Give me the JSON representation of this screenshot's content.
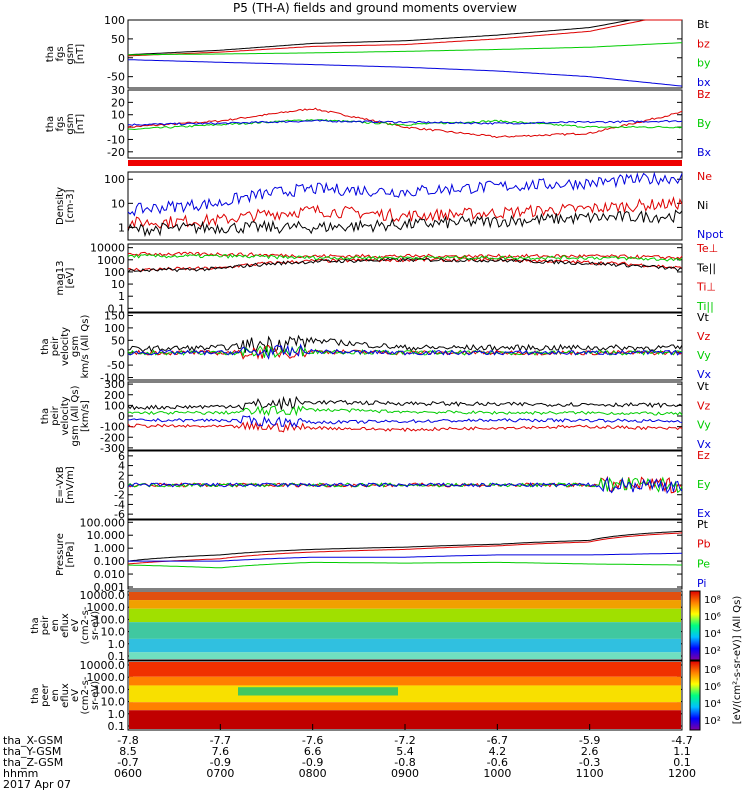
{
  "title": "P5 (TH-A) fields and ground moments overview",
  "colors": {
    "black": "#000000",
    "red": "#dd0000",
    "green": "#00cc00",
    "blue": "#0000dd"
  },
  "panels": [
    {
      "id": "p1",
      "ylabel": [
        "tha",
        "fgs",
        "gsm",
        "[nT]"
      ],
      "ticks": [
        "100",
        "50",
        "0",
        "-50"
      ],
      "ylim": [
        -80,
        100
      ],
      "legend": [
        {
          "text": "Bt",
          "color": "#000000"
        },
        {
          "text": "bz",
          "color": "#dd0000"
        },
        {
          "text": "by",
          "color": "#00cc00"
        },
        {
          "text": "bx",
          "color": "#0000dd"
        }
      ]
    },
    {
      "id": "p2",
      "ylabel": [
        "tha",
        "fgs",
        "gsm",
        "[nT]"
      ],
      "ticks": [
        "30",
        "20",
        "10",
        "0",
        "-10",
        "-20"
      ],
      "ylim": [
        -25,
        30
      ],
      "legend": [
        {
          "text": "Bz",
          "color": "#dd0000"
        },
        {
          "text": "By",
          "color": "#00cc00"
        },
        {
          "text": "Bx",
          "color": "#0000dd"
        }
      ]
    },
    {
      "id": "p3",
      "ylabel": [
        "Density",
        "[cm-3]"
      ],
      "ticks": [
        "100",
        "10",
        "1"
      ],
      "ylim": [
        0.3,
        200
      ],
      "scale": "log",
      "legend": [
        {
          "text": "Ne",
          "color": "#dd0000"
        },
        {
          "text": "Ni",
          "color": "#000000"
        },
        {
          "text": "Npot",
          "color": "#0000dd"
        }
      ]
    },
    {
      "id": "p4",
      "ylabel": [
        "mag13",
        "[eV]"
      ],
      "ticks": [
        "10000",
        "1000",
        "100",
        "10",
        "1",
        "0.1"
      ],
      "ylim": [
        0.05,
        20000
      ],
      "scale": "log",
      "legend": [
        {
          "text": "Te⊥",
          "color": "#dd0000"
        },
        {
          "text": "Te||",
          "color": "#000000"
        },
        {
          "text": "Ti⊥",
          "color": "#dd0000"
        },
        {
          "text": "Ti||",
          "color": "#00cc00"
        }
      ]
    },
    {
      "id": "p5",
      "ylabel": [
        "tha",
        "peir",
        "velocity",
        "gsm",
        "km/s (All Qs)"
      ],
      "ticks": [
        "150",
        "100",
        "50",
        "0",
        "-50",
        "-100"
      ],
      "ylim": [
        -110,
        160
      ],
      "legend": [
        {
          "text": "Vt",
          "color": "#000000"
        },
        {
          "text": "Vz",
          "color": "#dd0000"
        },
        {
          "text": "Vy",
          "color": "#00cc00"
        },
        {
          "text": "Vx",
          "color": "#0000dd"
        }
      ]
    },
    {
      "id": "p6",
      "ylabel": [
        "tha",
        "peir",
        "velocity",
        "gsm (All Qs)",
        "[km/s]"
      ],
      "ticks": [
        "300",
        "200",
        "100",
        "0",
        "-100",
        "-200",
        "-300"
      ],
      "ylim": [
        -320,
        320
      ],
      "legend": [
        {
          "text": "Vt",
          "color": "#000000"
        },
        {
          "text": "Vz",
          "color": "#dd0000"
        },
        {
          "text": "Vy",
          "color": "#00cc00"
        },
        {
          "text": "Vx",
          "color": "#0000dd"
        }
      ]
    },
    {
      "id": "p7",
      "ylabel": [
        "E=-VxB",
        "[mV/m]"
      ],
      "ticks": [
        "6",
        "4",
        "2",
        "0",
        "-2",
        "-4",
        "-6"
      ],
      "ylim": [
        -7,
        7
      ],
      "legend": [
        {
          "text": "Ez",
          "color": "#dd0000"
        },
        {
          "text": "Ey",
          "color": "#00cc00"
        },
        {
          "text": "Ex",
          "color": "#0000dd"
        }
      ]
    },
    {
      "id": "p8",
      "ylabel": [
        "Pressure",
        "[nPa]"
      ],
      "ticks": [
        "100.000",
        "10.000",
        "1.000",
        "0.100",
        "0.010",
        "0.001"
      ],
      "ylim": [
        0.0007,
        150
      ],
      "scale": "log",
      "legend": [
        {
          "text": "Pt",
          "color": "#000000"
        },
        {
          "text": "Pb",
          "color": "#dd0000"
        },
        {
          "text": "Pe",
          "color": "#00cc00"
        },
        {
          "text": "Pi",
          "color": "#0000dd"
        }
      ]
    },
    {
      "id": "p9",
      "ylabel": [
        "tha",
        "peir",
        "en",
        "eflux",
        "eV",
        "(cm2-s-",
        "sr-eV)"
      ],
      "ticks": [
        "10000.0",
        "1000.0",
        "100.0",
        "10.0",
        "1.0",
        "0.1"
      ],
      "type": "spectrogram"
    },
    {
      "id": "p10",
      "ylabel": [
        "tha",
        "peer",
        "en",
        "eflux",
        "eV",
        "(cm2-s-",
        "sr-eV)"
      ],
      "ticks": [
        "10000.0",
        "1000.0",
        "100.0",
        "10.0",
        "1.0",
        "0.1"
      ],
      "type": "spectrogram"
    }
  ],
  "colorbar": {
    "ticks": [
      "10⁸",
      "10⁶",
      "10⁴",
      "10²"
    ],
    "label": "[eV/(cm²-s-sr-eV)] (All Qs)"
  },
  "xaxis": {
    "rows": [
      {
        "label": "tha_X-GSM",
        "values": [
          "-7.8",
          "-7.7",
          "-7.6",
          "-7.2",
          "-6.7",
          "-5.9",
          "-4.7"
        ]
      },
      {
        "label": "tha_Y-GSM",
        "values": [
          "8.5",
          "7.6",
          "6.6",
          "5.4",
          "4.2",
          "2.6",
          "1.1"
        ]
      },
      {
        "label": "tha_Z-GSM",
        "values": [
          "-0.7",
          "-0.9",
          "-0.9",
          "-0.8",
          "-0.6",
          "-0.3",
          "0.1"
        ]
      },
      {
        "label": "hhmm",
        "values": [
          "0600",
          "0700",
          "0800",
          "0900",
          "1000",
          "1100",
          "1200"
        ]
      }
    ],
    "date": "2017 Apr 07"
  },
  "chart_data": {
    "type": "line",
    "title": "P5 (TH-A) fields and ground moments overview",
    "x": [
      "0600",
      "0700",
      "0800",
      "0900",
      "1000",
      "1100",
      "1200"
    ],
    "series": [
      {
        "name": "Bt",
        "panel": "p1",
        "values": [
          8,
          20,
          38,
          45,
          60,
          80,
          125
        ]
      },
      {
        "name": "bz",
        "panel": "p1",
        "values": [
          5,
          15,
          30,
          35,
          50,
          70,
          120
        ]
      },
      {
        "name": "by",
        "panel": "p1",
        "values": [
          8,
          10,
          13,
          17,
          22,
          28,
          40
        ]
      },
      {
        "name": "bx",
        "panel": "p1",
        "values": [
          -5,
          -12,
          -18,
          -25,
          -35,
          -50,
          -75
        ]
      },
      {
        "name": "Bz",
        "panel": "p2",
        "values": [
          0,
          5,
          15,
          0,
          -8,
          -5,
          12
        ]
      },
      {
        "name": "By",
        "panel": "p2",
        "values": [
          -2,
          2,
          6,
          2,
          5,
          0,
          0
        ]
      },
      {
        "name": "Bx",
        "panel": "p2",
        "values": [
          2,
          3,
          5,
          4,
          3,
          4,
          5
        ]
      },
      {
        "name": "Ne",
        "panel": "p3",
        "values": [
          1.5,
          2,
          5,
          3,
          4,
          6,
          10
        ]
      },
      {
        "name": "Ni",
        "panel": "p3",
        "values": [
          0.8,
          1,
          1,
          1.3,
          1.8,
          2.5,
          3
        ]
      },
      {
        "name": "Npot",
        "panel": "p3",
        "values": [
          5,
          10,
          40,
          30,
          50,
          70,
          120
        ]
      },
      {
        "name": "Te⊥",
        "panel": "p4",
        "values": [
          150,
          200,
          800,
          1000,
          1000,
          600,
          200
        ]
      },
      {
        "name": "Te||",
        "panel": "p4",
        "values": [
          120,
          180,
          700,
          1000,
          900,
          500,
          150
        ]
      },
      {
        "name": "Ti⊥",
        "panel": "p4",
        "values": [
          3000,
          3000,
          2000,
          2000,
          2000,
          2000,
          1500
        ]
      },
      {
        "name": "Ti||",
        "panel": "p4",
        "values": [
          2000,
          2000,
          1500,
          1500,
          1500,
          1500,
          1000
        ]
      },
      {
        "name": "Vt",
        "panel": "p5",
        "values": [
          15,
          20,
          50,
          20,
          20,
          20,
          20
        ]
      },
      {
        "name": "Vz",
        "panel": "p5",
        "values": [
          0,
          0,
          5,
          0,
          0,
          0,
          0
        ]
      },
      {
        "name": "Vy",
        "panel": "p5",
        "values": [
          0,
          0,
          5,
          0,
          0,
          0,
          0
        ]
      },
      {
        "name": "Vx",
        "panel": "p5",
        "values": [
          0,
          0,
          5,
          0,
          0,
          0,
          0
        ]
      },
      {
        "name": "Vt",
        "panel": "p6",
        "values": [
          80,
          90,
          130,
          120,
          110,
          110,
          100
        ]
      },
      {
        "name": "Vz",
        "panel": "p6",
        "values": [
          -90,
          -100,
          -110,
          -130,
          -110,
          -100,
          -120
        ]
      },
      {
        "name": "Vy",
        "panel": "p6",
        "values": [
          30,
          30,
          60,
          40,
          30,
          30,
          20
        ]
      },
      {
        "name": "Vx",
        "panel": "p6",
        "values": [
          -40,
          -40,
          -60,
          -50,
          -40,
          -40,
          -50
        ]
      },
      {
        "name": "Ez",
        "panel": "p7",
        "values": [
          0,
          0,
          0,
          0,
          0,
          0,
          0
        ]
      },
      {
        "name": "Ey",
        "panel": "p7",
        "values": [
          0,
          0,
          0,
          0,
          0,
          0,
          0
        ]
      },
      {
        "name": "Ex",
        "panel": "p7",
        "values": [
          0,
          0,
          0,
          0,
          0,
          0,
          0
        ]
      },
      {
        "name": "Pt",
        "panel": "p8",
        "values": [
          0.1,
          0.3,
          0.8,
          1.2,
          2,
          4,
          20
        ]
      },
      {
        "name": "Pb",
        "panel": "p8",
        "values": [
          0.06,
          0.15,
          0.5,
          0.8,
          1.5,
          3,
          15
        ]
      },
      {
        "name": "Pe",
        "panel": "p8",
        "values": [
          0.05,
          0.03,
          0.08,
          0.07,
          0.08,
          0.06,
          0.05
        ]
      },
      {
        "name": "Pi",
        "panel": "p8",
        "values": [
          0.1,
          0.1,
          0.2,
          0.2,
          0.3,
          0.3,
          0.4
        ]
      }
    ]
  }
}
